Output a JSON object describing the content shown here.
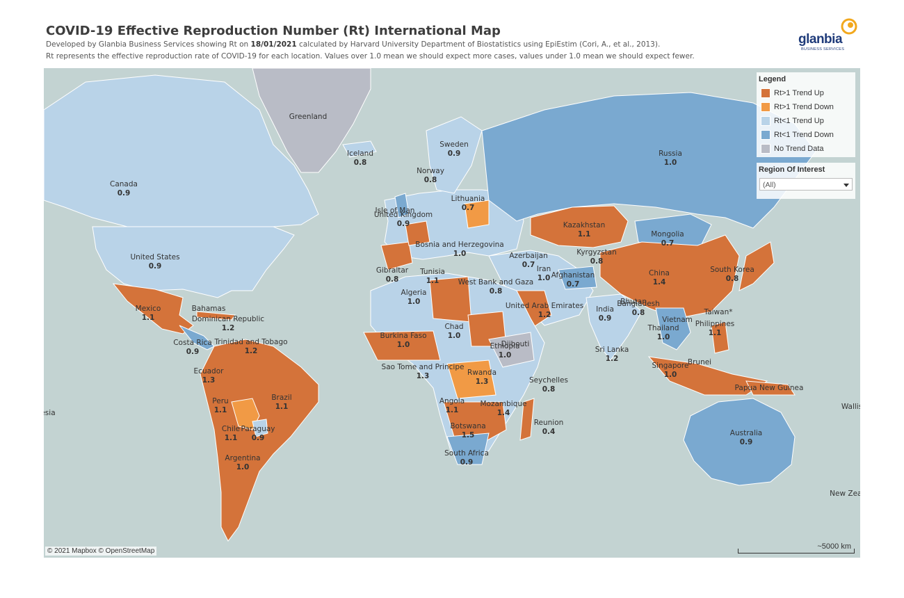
{
  "header": {
    "title": "COVID-19 Effective Reproduction Number (Rt) International Map",
    "subtitle_pre": "Developed by Glanbia Business Services showing Rt on ",
    "subtitle_date": "18/01/2021",
    "subtitle_post": " calculated by Harvard University Department of Biostatistics using EpiEstim (Cori, A., et al., 2013).",
    "subtitle2": "Rt represents the effective reproduction rate of COVID-19 for each location. Values over 1.0 mean we should expect more cases, values under 1.0 mean we should expect fewer."
  },
  "logo": {
    "word": "glanbia",
    "tag": "BUSINESS SERVICES"
  },
  "colors": {
    "up_high": "#d4733a",
    "down_high": "#f19a45",
    "up_low": "#b9d3e8",
    "down_low": "#7aa9d0",
    "no_data": "#b9bcc6",
    "water": "#c3d3d2"
  },
  "legend": {
    "title": "Legend",
    "items": [
      {
        "label": "Rt>1 Trend Up",
        "color": "#d4733a"
      },
      {
        "label": "Rt>1 Trend Down",
        "color": "#f19a45"
      },
      {
        "label": "Rt<1 Trend Up",
        "color": "#b9d3e8"
      },
      {
        "label": "Rt<1 Trend Down",
        "color": "#7aa9d0"
      },
      {
        "label": "No Trend Data",
        "color": "#b9bcc6"
      }
    ]
  },
  "filter": {
    "title": "Region Of Interest",
    "value": "(All)"
  },
  "attribution": "© 2021 Mapbox © OpenStreetMap",
  "scale": "~5000 km",
  "locations": [
    {
      "name": "Greenland",
      "value": ""
    },
    {
      "name": "Iceland",
      "value": "0.8"
    },
    {
      "name": "Sweden",
      "value": "0.9"
    },
    {
      "name": "Norway",
      "value": "0.8"
    },
    {
      "name": "Russia",
      "value": "1.0"
    },
    {
      "name": "Canada",
      "value": "0.9"
    },
    {
      "name": "Lithuania",
      "value": "0.7"
    },
    {
      "name": "Isle of Man",
      "value": ""
    },
    {
      "name": "United Kingdom",
      "value": "0.9"
    },
    {
      "name": "Kazakhstan",
      "value": "1.1"
    },
    {
      "name": "Mongolia",
      "value": "0.7"
    },
    {
      "name": "Bosnia and Herzegovina",
      "value": "1.0"
    },
    {
      "name": "Kyrgyzstan",
      "value": "0.8"
    },
    {
      "name": "United States",
      "value": "0.9"
    },
    {
      "name": "Azerbaijan",
      "value": "0.7"
    },
    {
      "name": "Gibraltar",
      "value": "0.8"
    },
    {
      "name": "Tunisia",
      "value": "1.1"
    },
    {
      "name": "China",
      "value": "1.4"
    },
    {
      "name": "South Korea",
      "value": "0.8"
    },
    {
      "name": "Afghanistan",
      "value": "0.7"
    },
    {
      "name": "Iran",
      "value": "1.0"
    },
    {
      "name": "West Bank and Gaza",
      "value": "0.8"
    },
    {
      "name": "Algeria",
      "value": "1.0"
    },
    {
      "name": "Mexico",
      "value": "1.1"
    },
    {
      "name": "Bahamas",
      "value": ""
    },
    {
      "name": "United Arab Emirates",
      "value": "1.2"
    },
    {
      "name": "Bhutan",
      "value": ""
    },
    {
      "name": "Bangladesh",
      "value": "0.8"
    },
    {
      "name": "Taiwan*",
      "value": ""
    },
    {
      "name": "Dominican Republic",
      "value": "1.2"
    },
    {
      "name": "India",
      "value": "0.9"
    },
    {
      "name": "Vietnam",
      "value": ""
    },
    {
      "name": "Philippines",
      "value": "1.1"
    },
    {
      "name": "Chad",
      "value": "1.0"
    },
    {
      "name": "Thailand",
      "value": "1.0"
    },
    {
      "name": "Trinidad and Tobago",
      "value": "1.2"
    },
    {
      "name": "Costa Rica",
      "value": "0.9"
    },
    {
      "name": "Burkina Faso",
      "value": "1.0"
    },
    {
      "name": "Djibouti",
      "value": ""
    },
    {
      "name": "Ethiopia",
      "value": "1.0"
    },
    {
      "name": "Sri Lanka",
      "value": "1.2"
    },
    {
      "name": "Brunei",
      "value": ""
    },
    {
      "name": "Singapore",
      "value": "1.0"
    },
    {
      "name": "Sao Tome and Principe",
      "value": "1.3"
    },
    {
      "name": "Ecuador",
      "value": "1.3"
    },
    {
      "name": "Rwanda",
      "value": "1.3"
    },
    {
      "name": "Seychelles",
      "value": "0.8"
    },
    {
      "name": "Papua New Guinea",
      "value": ""
    },
    {
      "name": "Brazil",
      "value": "1.1"
    },
    {
      "name": "Angola",
      "value": "1.1"
    },
    {
      "name": "Peru",
      "value": "1.1"
    },
    {
      "name": "Mozambique",
      "value": "1.4"
    },
    {
      "name": "Wallis",
      "value": ""
    },
    {
      "name": "esia",
      "value": ""
    },
    {
      "name": "Reunion",
      "value": "0.4"
    },
    {
      "name": "Botswana",
      "value": "1.5"
    },
    {
      "name": "Chile",
      "value": "1.1"
    },
    {
      "name": "Paraguay",
      "value": "0.9"
    },
    {
      "name": "Australia",
      "value": "0.9"
    },
    {
      "name": "South Africa",
      "value": "0.9"
    },
    {
      "name": "Argentina",
      "value": "1.0"
    },
    {
      "name": "New Zeala",
      "value": ""
    }
  ]
}
